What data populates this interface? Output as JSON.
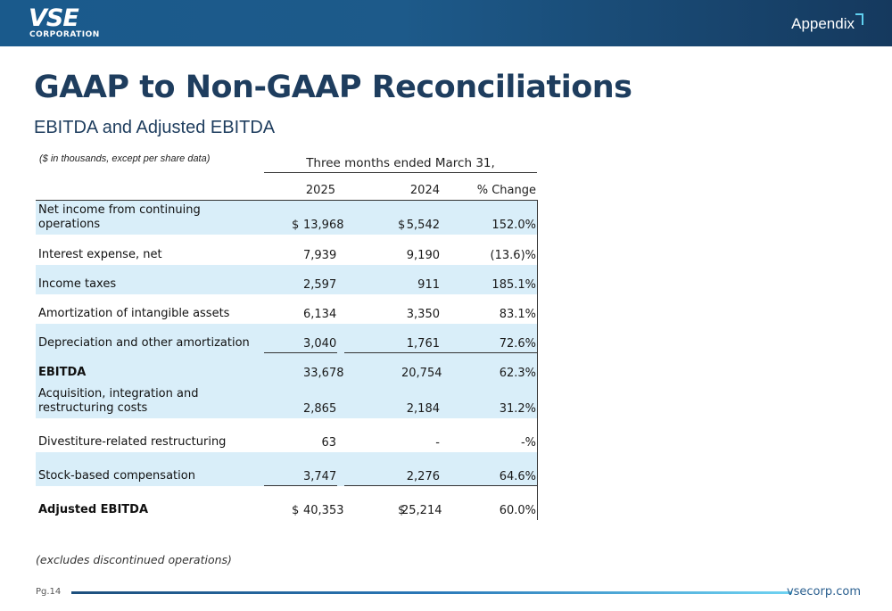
{
  "header": {
    "logo_main": "VSE",
    "logo_sub": "CORPORATION",
    "section": "Appendix",
    "accent": "#5fd0f0"
  },
  "title": "GAAP to Non-GAAP Reconciliations",
  "subtitle": "EBITDA and Adjusted EBITDA",
  "table": {
    "note": "($ in thousands, except per share data)",
    "period_header": "Three months ended March 31,",
    "columns": [
      "2025",
      "2024",
      "% Change"
    ],
    "rows": [
      {
        "label": "Net income from continuing operations",
        "a_cur": "$",
        "a": "13,968",
        "b_cur": "$",
        "b": "5,542",
        "chg": "152.0%"
      },
      {
        "label": "Interest expense, net",
        "a_cur": "",
        "a": "7,939",
        "b_cur": "",
        "b": "9,190",
        "chg": "(13.6)%"
      },
      {
        "label": "Income taxes",
        "a_cur": "",
        "a": "2,597",
        "b_cur": "",
        "b": "911",
        "chg": "185.1%"
      },
      {
        "label": "Amortization of intangible assets",
        "a_cur": "",
        "a": "6,134",
        "b_cur": "",
        "b": "3,350",
        "chg": "83.1%"
      },
      {
        "label": "Depreciation and other amortization",
        "a_cur": "",
        "a": "3,040",
        "b_cur": "",
        "b": "1,761",
        "chg": "72.6%"
      },
      {
        "label": "EBITDA",
        "a_cur": "",
        "a": "33,678",
        "b_cur": "",
        "b": "20,754",
        "chg": "62.3%"
      },
      {
        "label": "Acquisition, integration and restructuring costs",
        "a_cur": "",
        "a": "2,865",
        "b_cur": "",
        "b": "2,184",
        "chg": "31.2%"
      },
      {
        "label": "Divestiture-related restructuring",
        "a_cur": "",
        "a": "63",
        "b_cur": "",
        "b": "-",
        "chg": "-%"
      },
      {
        "label": "Stock-based compensation",
        "a_cur": "",
        "a": "3,747",
        "b_cur": "",
        "b": "2,276",
        "chg": "64.6%"
      },
      {
        "label": "Adjusted EBITDA",
        "a_cur": "$",
        "a": "40,353",
        "b_cur": "$",
        "b": "25,214",
        "chg": "60.0%"
      }
    ]
  },
  "footnote": "(excludes discontinued operations)",
  "footer": {
    "page": "Pg.14",
    "site": "vsecorp.com"
  }
}
